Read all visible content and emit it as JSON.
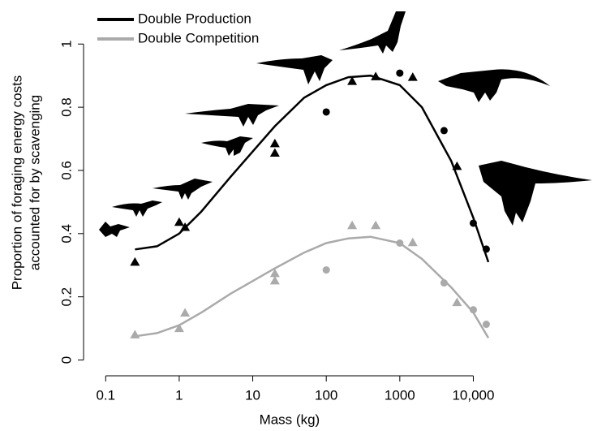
{
  "chart_data": {
    "type": "scatter",
    "xlabel": "Mass (kg)",
    "ylabel": [
      "Proportion of foraging energy costs",
      "accounted for by scavenging"
    ],
    "xscale": "log",
    "xlim": [
      0.05,
      60000
    ],
    "ylim": [
      -0.05,
      1.07
    ],
    "xticks": [
      0.1,
      1,
      10,
      100,
      1000,
      {
        "value": 10000,
        "label": "10,000"
      }
    ],
    "yticks": [
      0,
      0.2,
      0.4,
      0.6,
      0.8,
      1
    ],
    "legend": "top-left",
    "series": [
      {
        "name": "Double Production",
        "color": "#000000",
        "x": [
          0.25,
          1,
          1.2,
          20,
          20,
          100,
          225,
          470,
          1000,
          1500,
          4000,
          6000,
          10000,
          15000
        ],
        "values": [
          0.31,
          0.436,
          0.42,
          0.685,
          0.655,
          0.785,
          0.882,
          0.897,
          0.908,
          0.895,
          0.726,
          0.613,
          0.433,
          0.351
        ],
        "markers": [
          "triangle",
          "triangle",
          "triangle",
          "triangle",
          "triangle",
          "circle",
          "triangle",
          "triangle",
          "circle",
          "triangle",
          "circle",
          "triangle",
          "circle",
          "circle"
        ],
        "curve": {
          "x": [
            0.25,
            0.5,
            1,
            2,
            5,
            10,
            20,
            50,
            100,
            200,
            400,
            1000,
            2000,
            5000,
            10000,
            16000
          ],
          "values": [
            0.35,
            0.36,
            0.4,
            0.47,
            0.58,
            0.66,
            0.74,
            0.83,
            0.87,
            0.895,
            0.9,
            0.87,
            0.8,
            0.63,
            0.45,
            0.31
          ]
        }
      },
      {
        "name": "Double Competition",
        "color": "#aaaaaa",
        "x": [
          0.25,
          1,
          1.2,
          20,
          20,
          100,
          225,
          470,
          1000,
          1500,
          4000,
          6000,
          10000,
          15000
        ],
        "values": [
          0.08,
          0.1,
          0.149,
          0.274,
          0.251,
          0.285,
          0.426,
          0.426,
          0.37,
          0.372,
          0.244,
          0.182,
          0.159,
          0.113
        ],
        "markers": [
          "triangle",
          "triangle",
          "triangle",
          "triangle",
          "triangle",
          "circle",
          "triangle",
          "triangle",
          "circle",
          "triangle",
          "circle",
          "triangle",
          "circle",
          "circle"
        ],
        "curve": {
          "x": [
            0.25,
            0.5,
            1,
            2,
            5,
            10,
            20,
            50,
            100,
            200,
            400,
            1000,
            2000,
            5000,
            10000,
            16000
          ],
          "values": [
            0.075,
            0.085,
            0.11,
            0.15,
            0.21,
            0.25,
            0.29,
            0.34,
            0.37,
            0.385,
            0.39,
            0.37,
            0.32,
            0.23,
            0.15,
            0.07
          ]
        }
      }
    ]
  }
}
